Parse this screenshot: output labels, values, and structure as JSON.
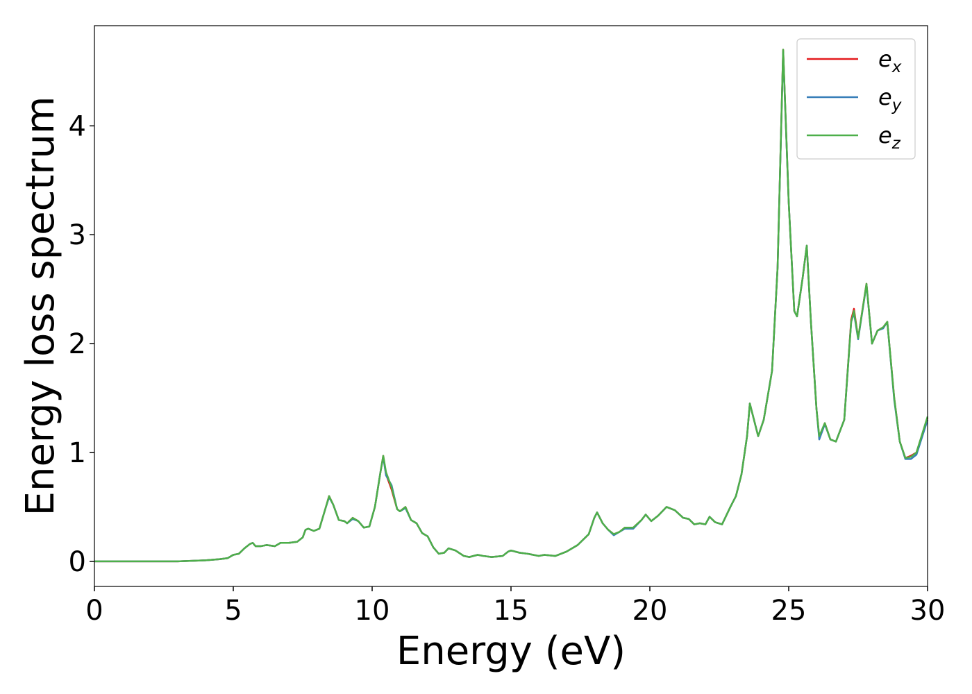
{
  "chart_data": {
    "type": "line",
    "xlabel": "Energy (eV)",
    "ylabel": "Energy loss spectrum",
    "xlim": [
      0,
      30
    ],
    "xticks": [
      0,
      5,
      10,
      15,
      20,
      25,
      30
    ],
    "ylim": [
      -0.23,
      4.92
    ],
    "yticks": [
      0,
      1,
      2,
      3,
      4
    ],
    "legend": "upper right",
    "x": [
      0,
      3,
      4,
      4.5,
      4.8,
      5,
      5.2,
      5.4,
      5.6,
      5.7,
      5.8,
      6,
      6.2,
      6.5,
      6.7,
      7,
      7.3,
      7.5,
      7.6,
      7.7,
      7.9,
      8.1,
      8.3,
      8.45,
      8.6,
      8.8,
      9,
      9.1,
      9.3,
      9.5,
      9.7,
      9.9,
      10.1,
      10.3,
      10.4,
      10.5,
      10.7,
      10.9,
      11,
      11.2,
      11.4,
      11.6,
      11.8,
      12,
      12.2,
      12.4,
      12.6,
      12.75,
      13,
      13.3,
      13.5,
      13.8,
      14,
      14.3,
      14.7,
      14.9,
      15,
      15.3,
      15.6,
      16,
      16.2,
      16.6,
      17,
      17.4,
      17.8,
      18,
      18.1,
      18.3,
      18.5,
      18.7,
      18.9,
      19.1,
      19.4,
      19.7,
      19.85,
      20.05,
      20.3,
      20.6,
      20.9,
      21.2,
      21.4,
      21.6,
      21.8,
      22,
      22.15,
      22.35,
      22.6,
      22.9,
      23.1,
      23.3,
      23.5,
      23.6,
      23.75,
      23.9,
      24.1,
      24.4,
      24.6,
      24.8,
      25,
      25.2,
      25.3,
      25.5,
      25.65,
      25.8,
      26,
      26.1,
      26.3,
      26.5,
      26.7,
      27,
      27.25,
      27.35,
      27.5,
      27.8,
      28,
      28.2,
      28.4,
      28.55,
      28.8,
      29,
      29.2,
      29.4,
      29.6,
      30
    ],
    "series": [
      {
        "name": "ex",
        "color": "#e41a1c",
        "values": [
          0,
          0,
          0.01,
          0.02,
          0.03,
          0.06,
          0.07,
          0.12,
          0.16,
          0.17,
          0.14,
          0.14,
          0.15,
          0.14,
          0.17,
          0.17,
          0.18,
          0.22,
          0.29,
          0.3,
          0.28,
          0.3,
          0.47,
          0.6,
          0.52,
          0.38,
          0.37,
          0.35,
          0.4,
          0.37,
          0.31,
          0.32,
          0.5,
          0.82,
          0.97,
          0.8,
          0.66,
          0.48,
          0.46,
          0.5,
          0.38,
          0.35,
          0.26,
          0.23,
          0.13,
          0.07,
          0.08,
          0.12,
          0.1,
          0.05,
          0.04,
          0.06,
          0.05,
          0.04,
          0.05,
          0.09,
          0.1,
          0.08,
          0.07,
          0.05,
          0.06,
          0.05,
          0.09,
          0.15,
          0.25,
          0.4,
          0.45,
          0.35,
          0.29,
          0.25,
          0.27,
          0.31,
          0.31,
          0.38,
          0.43,
          0.37,
          0.42,
          0.5,
          0.47,
          0.4,
          0.39,
          0.34,
          0.35,
          0.34,
          0.41,
          0.36,
          0.34,
          0.5,
          0.6,
          0.8,
          1.15,
          1.45,
          1.3,
          1.15,
          1.3,
          1.75,
          2.7,
          4.7,
          3.3,
          2.3,
          2.25,
          2.6,
          2.9,
          2.2,
          1.4,
          1.14,
          1.27,
          1.12,
          1.1,
          1.3,
          2.22,
          2.32,
          2.05,
          2.55,
          2,
          2.12,
          2.15,
          2.2,
          1.5,
          1.1,
          0.95,
          0.97,
          1,
          1.32
        ]
      },
      {
        "name": "ey",
        "color": "#377eb8",
        "values": [
          0,
          0,
          0.01,
          0.02,
          0.03,
          0.06,
          0.07,
          0.12,
          0.16,
          0.17,
          0.14,
          0.14,
          0.15,
          0.14,
          0.17,
          0.17,
          0.18,
          0.22,
          0.29,
          0.3,
          0.28,
          0.3,
          0.47,
          0.59,
          0.52,
          0.38,
          0.37,
          0.35,
          0.39,
          0.37,
          0.31,
          0.32,
          0.5,
          0.82,
          0.96,
          0.79,
          0.7,
          0.48,
          0.46,
          0.49,
          0.38,
          0.35,
          0.26,
          0.23,
          0.13,
          0.07,
          0.08,
          0.12,
          0.1,
          0.05,
          0.04,
          0.06,
          0.05,
          0.04,
          0.05,
          0.09,
          0.1,
          0.08,
          0.07,
          0.05,
          0.06,
          0.05,
          0.09,
          0.15,
          0.25,
          0.4,
          0.45,
          0.35,
          0.29,
          0.24,
          0.27,
          0.3,
          0.3,
          0.38,
          0.43,
          0.37,
          0.42,
          0.5,
          0.47,
          0.4,
          0.39,
          0.34,
          0.35,
          0.34,
          0.41,
          0.36,
          0.34,
          0.5,
          0.6,
          0.8,
          1.15,
          1.45,
          1.3,
          1.15,
          1.3,
          1.75,
          2.7,
          4.68,
          3.3,
          2.3,
          2.25,
          2.6,
          2.9,
          2.2,
          1.4,
          1.12,
          1.26,
          1.12,
          1.1,
          1.3,
          2.2,
          2.28,
          2.04,
          2.54,
          2,
          2.12,
          2.14,
          2.2,
          1.48,
          1.1,
          0.94,
          0.94,
          0.98,
          1.3
        ]
      },
      {
        "name": "ez",
        "color": "#4daf4a",
        "values": [
          0,
          0,
          0.01,
          0.02,
          0.03,
          0.06,
          0.07,
          0.12,
          0.16,
          0.17,
          0.14,
          0.14,
          0.15,
          0.14,
          0.17,
          0.17,
          0.18,
          0.22,
          0.29,
          0.3,
          0.28,
          0.3,
          0.47,
          0.6,
          0.52,
          0.38,
          0.37,
          0.35,
          0.4,
          0.37,
          0.31,
          0.32,
          0.5,
          0.82,
          0.97,
          0.82,
          0.68,
          0.48,
          0.46,
          0.5,
          0.38,
          0.35,
          0.26,
          0.23,
          0.13,
          0.07,
          0.08,
          0.12,
          0.1,
          0.05,
          0.04,
          0.06,
          0.05,
          0.04,
          0.05,
          0.09,
          0.1,
          0.08,
          0.07,
          0.05,
          0.06,
          0.05,
          0.09,
          0.15,
          0.25,
          0.4,
          0.45,
          0.35,
          0.29,
          0.25,
          0.27,
          0.31,
          0.31,
          0.38,
          0.43,
          0.37,
          0.42,
          0.5,
          0.47,
          0.4,
          0.39,
          0.34,
          0.35,
          0.34,
          0.41,
          0.36,
          0.34,
          0.5,
          0.6,
          0.8,
          1.15,
          1.45,
          1.3,
          1.15,
          1.3,
          1.75,
          2.7,
          4.7,
          3.3,
          2.3,
          2.25,
          2.6,
          2.9,
          2.2,
          1.4,
          1.15,
          1.27,
          1.12,
          1.1,
          1.3,
          2.2,
          2.3,
          2.05,
          2.55,
          2,
          2.12,
          2.15,
          2.2,
          1.5,
          1.1,
          0.95,
          0.96,
          1,
          1.33
        ]
      }
    ]
  }
}
